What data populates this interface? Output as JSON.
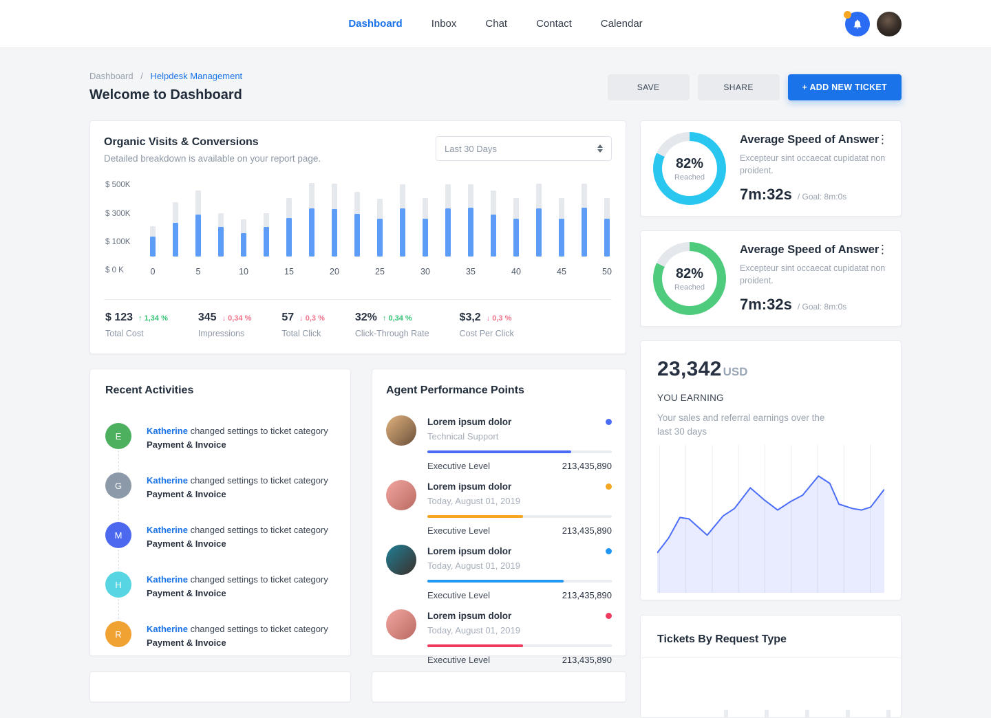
{
  "header": {
    "nav": [
      {
        "label": "Dashboard",
        "active": true
      },
      {
        "label": "Inbox",
        "active": false
      },
      {
        "label": "Chat",
        "active": false
      },
      {
        "label": "Contact",
        "active": false
      },
      {
        "label": "Calendar",
        "active": false
      }
    ],
    "notification_color": "#2a6df4",
    "notification_badge_color": "#f5a623"
  },
  "page": {
    "breadcrumb": {
      "root": "Dashboard",
      "separator": "/",
      "current": "Helpdesk Management"
    },
    "title": "Welcome to Dashboard",
    "actions": {
      "save": "SAVE",
      "share": "SHARE",
      "add_ticket": "+ ADD NEW TICKET"
    },
    "accent_color": "#1a73e8"
  },
  "organic": {
    "title": "Organic Visits & Conversions",
    "subtitle": "Detailed breakdown is available on your report page.",
    "range_selected": "Last 30 Days",
    "up_arrow": "↑",
    "down_arrow": "↓",
    "up_color": "#36c175",
    "down_color": "#f0728a",
    "stats": [
      {
        "value": "$ 123",
        "delta": "1,34 %",
        "direction": "up",
        "label": "Total Cost"
      },
      {
        "value": "345",
        "delta": "0,34 %",
        "direction": "down",
        "label": "Impressions"
      },
      {
        "value": "57",
        "delta": "0,3 %",
        "direction": "down",
        "label": "Total Click"
      },
      {
        "value": "32%",
        "delta": "0,34 %",
        "direction": "up",
        "label": "Click-Through Rate"
      },
      {
        "value": "$3,2",
        "delta": "0,3 %",
        "direction": "down",
        "label": "Cost Per Click"
      }
    ]
  },
  "chart_data": [
    {
      "id": "organic-bars",
      "type": "bar",
      "title": "Organic Visits & Conversions",
      "x_step": 2.5,
      "x_tick_labels": [
        "0",
        "5",
        "10",
        "15",
        "20",
        "25",
        "30",
        "35",
        "40",
        "45",
        "50"
      ],
      "y_tick_labels": [
        "$ 500K",
        "$ 300K",
        "$ 100K",
        "$ 0 K"
      ],
      "ylim": [
        0,
        520
      ],
      "unit": "$K",
      "grid": false,
      "series": [
        {
          "name": "total",
          "color": "#e5e8ed",
          "values": [
            210,
            380,
            460,
            305,
            260,
            305,
            410,
            515,
            510,
            455,
            405,
            505,
            410,
            505,
            505,
            460,
            410,
            510,
            410,
            510,
            410
          ]
        },
        {
          "name": "reached",
          "color": "#5d9cf6",
          "values": [
            140,
            235,
            295,
            205,
            165,
            205,
            270,
            335,
            330,
            300,
            265,
            335,
            265,
            335,
            340,
            295,
            265,
            335,
            265,
            340,
            265
          ]
        }
      ]
    },
    {
      "id": "earnings-area",
      "type": "area",
      "line_color": "#4a6cf7",
      "fill_color": "rgba(74,108,247,0.13)",
      "grid": "vertical",
      "gridline_count": 9,
      "points": [
        [
          0,
          27
        ],
        [
          5,
          37
        ],
        [
          10,
          51
        ],
        [
          14,
          50
        ],
        [
          22,
          39
        ],
        [
          29,
          52
        ],
        [
          34,
          57
        ],
        [
          41,
          71
        ],
        [
          47,
          63
        ],
        [
          53,
          56
        ],
        [
          59,
          62
        ],
        [
          64,
          66
        ],
        [
          71,
          79
        ],
        [
          76,
          74
        ],
        [
          80,
          60
        ],
        [
          86,
          57
        ],
        [
          90,
          56
        ],
        [
          94,
          58
        ],
        [
          100,
          70
        ]
      ]
    }
  ],
  "activities": {
    "title": "Recent Activities",
    "items": [
      {
        "initial": "E",
        "color": "#4cb05f",
        "user": "Katherine",
        "action": " changed settings to ticket category",
        "target": "Payment & Invoice"
      },
      {
        "initial": "G",
        "color": "#8c99a9",
        "user": "Katherine",
        "action": " changed settings to ticket category",
        "target": "Payment & Invoice"
      },
      {
        "initial": "M",
        "color": "#4c68ee",
        "user": "Katherine",
        "action": " changed settings to ticket category",
        "target": "Payment & Invoice"
      },
      {
        "initial": "H",
        "color": "#58d5e3",
        "user": "Katherine",
        "action": " changed settings to ticket category",
        "target": "Payment & Invoice"
      },
      {
        "initial": "R",
        "color": "#f0a233",
        "user": "Katherine",
        "action": " changed settings to ticket category",
        "target": "Payment & Invoice"
      }
    ]
  },
  "agents": {
    "title": "Agent Performance Points",
    "rows": [
      {
        "name": "Lorem ipsum dolor",
        "subtitle": "Technical Support",
        "accent": "#4a6cf7",
        "progress": 78,
        "level": "Executive Level",
        "points": "213,435,890",
        "avatar_colors": [
          "#e0b27e",
          "#6b4f3a"
        ]
      },
      {
        "name": "Lorem ipsum dolor",
        "subtitle": "Today, August 01, 2019",
        "accent": "#f5a623",
        "progress": 52,
        "level": "Executive Level",
        "points": "213,435,890",
        "avatar_colors": [
          "#f2a6a0",
          "#b96a62"
        ]
      },
      {
        "name": "Lorem ipsum dolor",
        "subtitle": "Today, August 01, 2019",
        "accent": "#2196f3",
        "progress": 74,
        "level": "Executive Level",
        "points": "213,435,890",
        "avatar_colors": [
          "#1f7f96",
          "#3c2f2a"
        ]
      },
      {
        "name": "Lorem ipsum dolor",
        "subtitle": "Today, August 01, 2019",
        "accent": "#ee3b5f",
        "progress": 52,
        "level": "Executive Level",
        "points": "213,435,890",
        "avatar_colors": [
          "#f2a6a0",
          "#b96a62"
        ]
      }
    ]
  },
  "speed_cards": [
    {
      "title": "Average Speed of Answer",
      "percent": 82,
      "percent_label": "82%",
      "reached_label": "Reached",
      "ring_color": "#29c6f0",
      "desc": "Excepteur sint occaecat cupidatat non proident.",
      "time": "7m:32s",
      "goal": "/ Goal: 8m:0s"
    },
    {
      "title": "Average Speed of Answer",
      "percent": 82,
      "percent_label": "82%",
      "reached_label": "Reached",
      "ring_color": "#4ecb7d",
      "desc": "Excepteur sint occaecat cupidatat non proident.",
      "time": "7m:32s",
      "goal": "/ Goal: 8m:0s"
    }
  ],
  "earnings": {
    "amount": "23,342",
    "currency": "USD",
    "label": "YOU EARNING",
    "desc": "Your sales and referral earnings over the last 30 days"
  },
  "tickets": {
    "title": "Tickets By Request Type",
    "bottom_tick_count": 5
  }
}
